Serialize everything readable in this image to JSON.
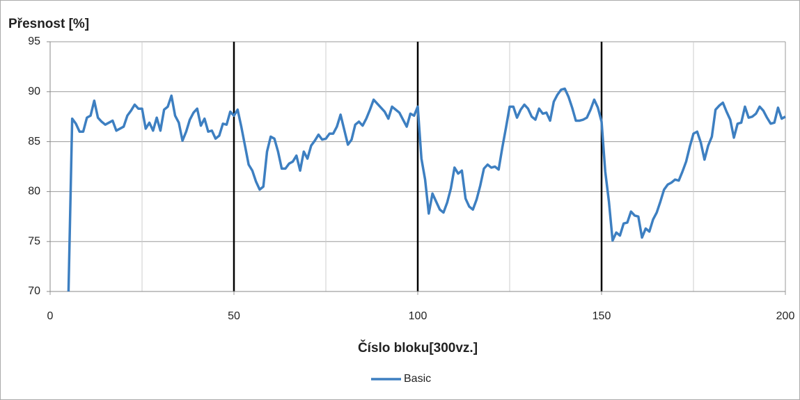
{
  "chart_data": {
    "type": "line",
    "title": "Přesnost [%]",
    "x_label": "Číslo bloku[300vz.]",
    "xlim": [
      0,
      200
    ],
    "xticks": [
      0,
      50,
      100,
      150,
      200
    ],
    "xminor": [
      25,
      75,
      125,
      175
    ],
    "vlines": [
      50,
      100,
      150
    ],
    "ylim": [
      70,
      95
    ],
    "yticks": [
      70,
      75,
      80,
      85,
      90,
      95
    ],
    "grid": true,
    "legend": "bottom",
    "x": [
      5,
      6,
      7,
      8,
      9,
      10,
      11,
      12,
      13,
      14,
      15,
      16,
      17,
      18,
      19,
      20,
      21,
      22,
      23,
      24,
      25,
      26,
      27,
      28,
      29,
      30,
      31,
      32,
      33,
      34,
      35,
      36,
      37,
      38,
      39,
      40,
      41,
      42,
      43,
      44,
      45,
      46,
      47,
      48,
      49,
      50,
      51,
      52,
      53,
      54,
      55,
      56,
      57,
      58,
      59,
      60,
      61,
      62,
      63,
      64,
      65,
      66,
      67,
      68,
      69,
      70,
      71,
      72,
      73,
      74,
      75,
      76,
      77,
      78,
      79,
      80,
      81,
      82,
      83,
      84,
      85,
      86,
      87,
      88,
      89,
      90,
      91,
      92,
      93,
      94,
      95,
      96,
      97,
      98,
      99,
      100,
      101,
      102,
      103,
      104,
      105,
      106,
      107,
      108,
      109,
      110,
      111,
      112,
      113,
      114,
      115,
      116,
      117,
      118,
      119,
      120,
      121,
      122,
      123,
      124,
      125,
      126,
      127,
      128,
      129,
      130,
      131,
      132,
      133,
      134,
      135,
      136,
      137,
      138,
      139,
      140,
      141,
      142,
      143,
      144,
      145,
      146,
      147,
      148,
      149,
      150,
      151,
      152,
      153,
      154,
      155,
      156,
      157,
      158,
      159,
      160,
      161,
      162,
      163,
      164,
      165,
      166,
      167,
      168,
      169,
      170,
      171,
      172,
      173,
      174,
      175,
      176,
      177,
      178,
      179,
      180,
      181,
      182,
      183,
      184,
      185,
      186,
      187,
      188,
      189,
      190,
      191,
      192,
      193,
      194,
      195,
      196,
      197,
      198,
      199,
      200
    ],
    "series": [
      {
        "name": "Basic",
        "color": "#3d7fc1",
        "values": [
          70,
          87.3,
          86.8,
          86.0,
          86.0,
          87.4,
          87.6,
          89.1,
          87.4,
          87.0,
          86.7,
          86.9,
          87.1,
          86.1,
          86.3,
          86.5,
          87.6,
          88.1,
          88.7,
          88.3,
          88.3,
          86.3,
          86.9,
          86.1,
          87.4,
          86.1,
          88.2,
          88.5,
          89.6,
          87.6,
          86.9,
          85.1,
          86.0,
          87.2,
          87.9,
          88.3,
          86.6,
          87.3,
          86.0,
          86.1,
          85.3,
          85.6,
          86.8,
          86.7,
          88.0,
          87.6,
          88.2,
          86.5,
          84.6,
          82.7,
          82.1,
          81.0,
          80.2,
          80.5,
          84.0,
          85.5,
          85.3,
          84.0,
          82.3,
          82.3,
          82.8,
          83.0,
          83.6,
          82.1,
          84.0,
          83.3,
          84.6,
          85.1,
          85.7,
          85.2,
          85.3,
          85.8,
          85.8,
          86.5,
          87.7,
          86.2,
          84.7,
          85.2,
          86.7,
          87.0,
          86.6,
          87.3,
          88.2,
          89.2,
          88.8,
          88.4,
          88.0,
          87.3,
          88.5,
          88.2,
          87.9,
          87.2,
          86.5,
          87.8,
          87.6,
          88.5,
          83.3,
          81.2,
          77.8,
          79.8,
          79.0,
          78.2,
          77.9,
          78.9,
          80.3,
          82.4,
          81.8,
          82.1,
          79.3,
          78.5,
          78.2,
          79.2,
          80.6,
          82.3,
          82.7,
          82.4,
          82.5,
          82.2,
          84.4,
          86.4,
          88.5,
          88.5,
          87.4,
          88.2,
          88.7,
          88.3,
          87.5,
          87.2,
          88.3,
          87.8,
          87.9,
          87.1,
          89.0,
          89.7,
          90.2,
          90.3,
          89.5,
          88.4,
          87.1,
          87.1,
          87.2,
          87.4,
          88.2,
          89.2,
          88.4,
          87.0,
          82.0,
          79.0,
          75.1,
          75.9,
          75.6,
          76.8,
          76.9,
          78.0,
          77.6,
          77.5,
          75.4,
          76.3,
          76.0,
          77.2,
          77.9,
          79.0,
          80.2,
          80.7,
          80.9,
          81.2,
          81.1,
          82.0,
          83.0,
          84.5,
          85.8,
          86.0,
          84.9,
          83.2,
          84.6,
          85.5,
          88.2,
          88.6,
          88.9,
          88.0,
          87.2,
          85.4,
          86.8,
          86.9,
          88.5,
          87.4,
          87.5,
          87.8,
          88.5,
          88.1,
          87.4,
          86.8,
          86.9,
          88.4,
          87.3,
          87.5
        ]
      }
    ]
  }
}
